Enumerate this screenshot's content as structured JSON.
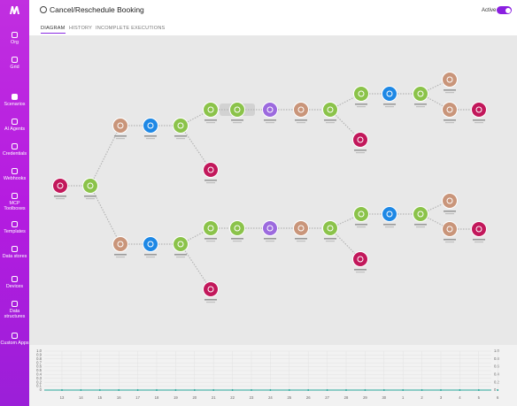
{
  "header": {
    "title": "Cancel/Reschedule Booking",
    "tabs": [
      "DIAGRAM",
      "HISTORY",
      "INCOMPLETE EXECUTIONS"
    ],
    "status": "Active"
  },
  "sidebar": {
    "items": [
      "Org",
      "Grid",
      "Scenarios",
      "AI Agents",
      "Credentials",
      "Webhooks",
      "MCP Toolboxes",
      "Templates",
      "Data stores",
      "Devices",
      "Data structures",
      "Custom Apps"
    ]
  },
  "chart": {
    "y_labels_left": [
      "1.0",
      "0.9",
      "0.8",
      "0.7",
      "0.6",
      "0.5",
      "0.4",
      "0.3",
      "0.2",
      "0.1",
      "0"
    ],
    "y_labels_right": [
      "1.0",
      "0.8",
      "0.6",
      "0.4",
      "0.2",
      "0"
    ],
    "x_labels": [
      "13",
      "14",
      "15",
      "16",
      "17",
      "18",
      "19",
      "20",
      "21",
      "22",
      "23",
      "24",
      "25",
      "26",
      "27",
      "28",
      "29",
      "30",
      "1",
      "2",
      "3",
      "4",
      "5",
      "6"
    ]
  }
}
